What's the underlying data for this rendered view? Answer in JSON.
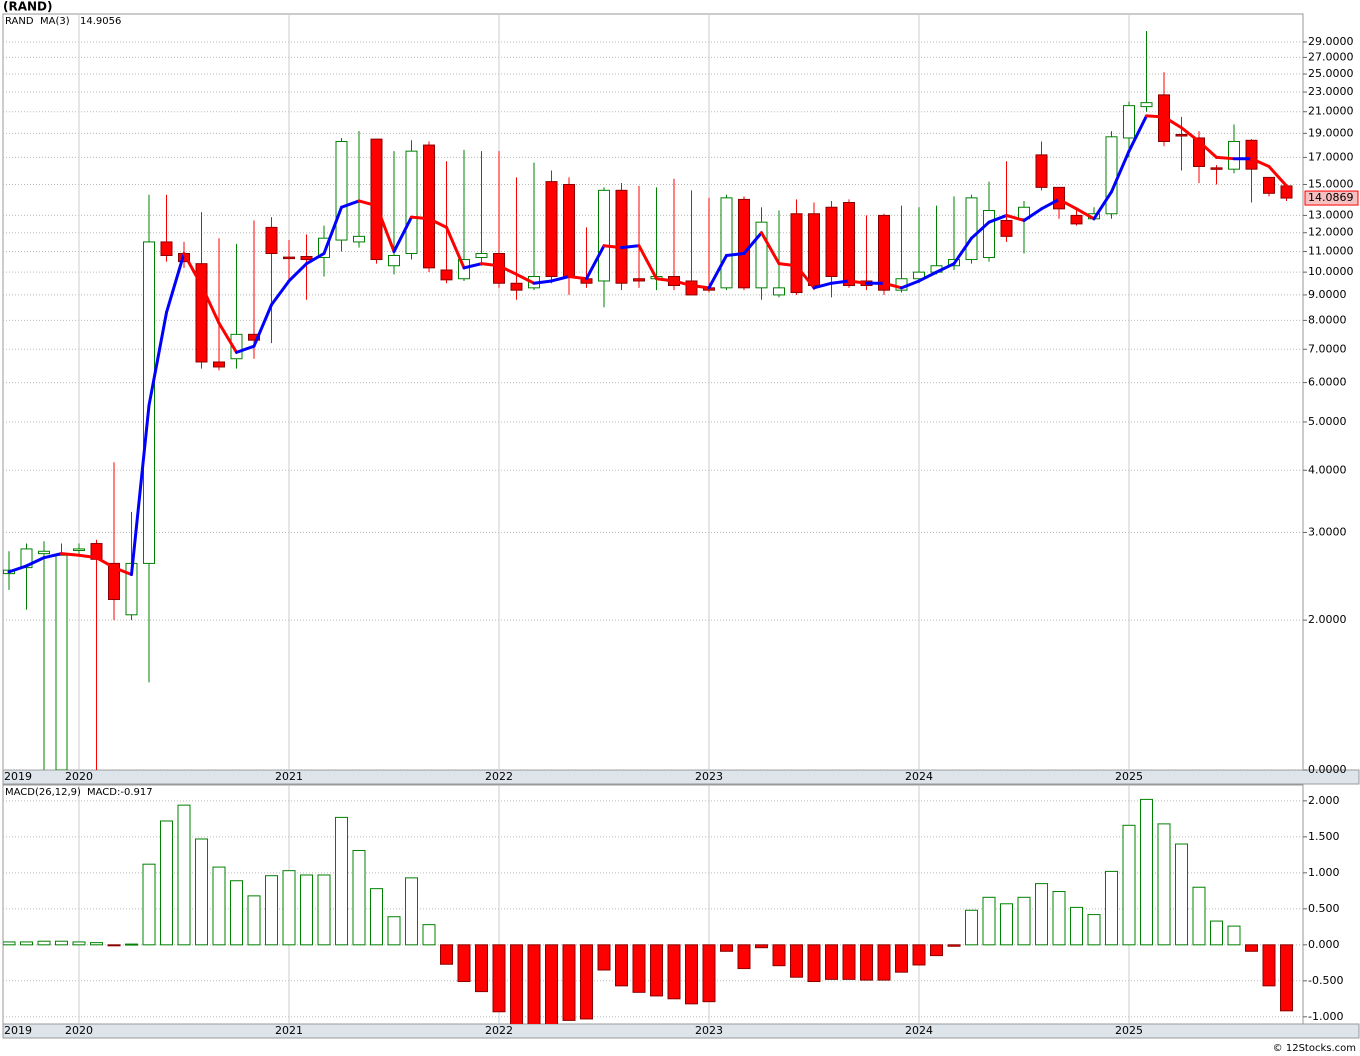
{
  "chart_data": [
    {
      "type": "candlestick",
      "title": "(RAND)",
      "name": "RAND",
      "categories": [
        "2019",
        null,
        null,
        null,
        "2020",
        null,
        null,
        null,
        null,
        null,
        null,
        null,
        null,
        null,
        null,
        null,
        "2021",
        null,
        null,
        null,
        null,
        null,
        null,
        null,
        null,
        null,
        null,
        null,
        "2022",
        null,
        null,
        null,
        null,
        null,
        null,
        null,
        null,
        null,
        null,
        null,
        "2023",
        null,
        null,
        null,
        null,
        null,
        null,
        null,
        null,
        null,
        null,
        null,
        "2024",
        null,
        null,
        null,
        null,
        null,
        null,
        null,
        null,
        null,
        null,
        null,
        "2025",
        null,
        null,
        null,
        null,
        null,
        null,
        null,
        null,
        null
      ],
      "open": [
        2.48,
        2.55,
        2.72,
        1.0,
        2.76,
        2.85,
        2.6,
        2.05,
        2.6,
        11.5,
        10.9,
        10.4,
        6.6,
        6.7,
        7.5,
        12.3,
        10.72,
        10.75,
        10.7,
        11.6,
        11.5,
        18.5,
        10.3,
        10.9,
        18.0,
        10.1,
        9.7,
        10.7,
        10.9,
        9.5,
        9.3,
        15.2,
        15.0,
        9.7,
        9.6,
        14.6,
        9.7,
        9.7,
        9.8,
        9.6,
        9.3,
        9.3,
        14.0,
        9.3,
        9.0,
        13.1,
        13.1,
        13.5,
        13.8,
        9.6,
        13.0,
        9.2,
        9.7,
        10.0,
        10.3,
        10.6,
        10.7,
        12.7,
        12.8,
        17.2,
        14.8,
        13.0,
        12.8,
        13.1,
        18.6,
        21.5,
        22.7,
        18.9,
        18.6,
        16.2,
        16.1,
        18.4,
        15.5,
        14.9
      ],
      "high": [
        2.75,
        2.85,
        2.88,
        2.85,
        2.85,
        2.9,
        4.15,
        3.3,
        14.3,
        14.3,
        11.5,
        13.2,
        11.7,
        11.4,
        12.7,
        12.9,
        11.6,
        11.9,
        12.4,
        18.6,
        19.2,
        18.5,
        17.5,
        18.4,
        18.3,
        16.7,
        17.6,
        17.5,
        17.5,
        15.5,
        16.6,
        16.0,
        15.5,
        12.3,
        14.8,
        15.1,
        14.9,
        14.8,
        15.4,
        14.6,
        14.1,
        14.3,
        14.2,
        13.5,
        13.3,
        14.0,
        13.8,
        13.9,
        14.0,
        13.0,
        13.1,
        13.6,
        13.5,
        13.6,
        14.2,
        14.3,
        15.2,
        16.7,
        13.9,
        18.3,
        14.8,
        13.3,
        13.5,
        19.2,
        22.0,
        30.5,
        25.2,
        20.5,
        19.2,
        16.4,
        19.8,
        18.5,
        15.5,
        14.9
      ],
      "low": [
        2.3,
        2.1,
        1.0,
        1.0,
        2.7,
        1.0,
        2.0,
        2.0,
        1.5,
        10.5,
        10.2,
        6.4,
        6.35,
        6.4,
        6.7,
        7.2,
        9.5,
        8.8,
        9.8,
        11.0,
        11.2,
        10.4,
        9.9,
        10.6,
        10.0,
        9.5,
        9.6,
        10.3,
        9.3,
        8.8,
        9.2,
        9.5,
        9.0,
        9.3,
        8.5,
        9.2,
        9.3,
        9.2,
        9.2,
        9.0,
        9.1,
        9.2,
        9.2,
        8.8,
        8.9,
        9.0,
        9.2,
        8.9,
        9.3,
        9.2,
        9.0,
        9.1,
        9.5,
        9.9,
        10.1,
        10.4,
        10.5,
        11.5,
        10.9,
        14.6,
        12.8,
        12.4,
        12.7,
        12.8,
        17.0,
        21.0,
        17.9,
        16.0,
        15.1,
        15.0,
        15.8,
        13.8,
        14.2,
        13.9
      ],
      "close": [
        2.52,
        2.78,
        2.75,
        2.7,
        2.78,
        2.65,
        2.2,
        2.6,
        11.5,
        10.8,
        10.5,
        6.6,
        6.45,
        7.5,
        7.3,
        10.9,
        10.68,
        10.6,
        11.7,
        18.3,
        11.8,
        10.6,
        10.8,
        17.5,
        10.2,
        9.65,
        10.6,
        10.9,
        9.5,
        9.2,
        9.8,
        9.8,
        9.8,
        9.5,
        14.6,
        9.5,
        9.6,
        9.8,
        9.4,
        9.0,
        9.2,
        14.1,
        9.3,
        12.6,
        9.3,
        9.1,
        9.4,
        9.8,
        9.4,
        9.4,
        9.2,
        9.7,
        10.0,
        10.3,
        10.6,
        14.1,
        13.3,
        11.8,
        13.5,
        14.8,
        13.4,
        12.5,
        13.1,
        18.7,
        21.6,
        21.9,
        18.3,
        18.8,
        16.3,
        16.1,
        18.3,
        16.1,
        14.4,
        14.0869
      ],
      "up_color": "#008000",
      "down_color": "#ff0000",
      "ma": {
        "name": "MA(3)",
        "up_color": "#0000ff",
        "down_color": "#ff0000",
        "values": [
          2.5,
          2.57,
          2.67,
          2.72,
          2.7,
          2.67,
          2.55,
          2.47,
          5.4,
          8.3,
          10.9,
          9.4,
          7.9,
          6.9,
          7.1,
          8.6,
          9.6,
          10.4,
          10.9,
          13.5,
          13.9,
          13.6,
          11.0,
          12.9,
          12.8,
          12.3,
          10.2,
          10.4,
          10.3,
          9.9,
          9.5,
          9.6,
          9.8,
          9.7,
          11.3,
          11.2,
          11.3,
          9.7,
          9.6,
          9.4,
          9.3,
          10.8,
          10.9,
          12.0,
          10.4,
          10.3,
          9.3,
          9.5,
          9.6,
          9.5,
          9.5,
          9.3,
          9.6,
          10.0,
          10.4,
          11.7,
          12.6,
          13.0,
          12.7,
          13.4,
          14.0,
          13.4,
          12.8,
          14.5,
          17.5,
          20.6,
          20.5,
          19.5,
          18.3,
          17.0,
          16.9,
          16.9,
          16.3,
          14.9056
        ]
      },
      "log_scale": true,
      "ylim": [
        1,
        33
      ],
      "grid": true,
      "yticks": [
        {
          "value": 0,
          "label": "0.0000"
        },
        {
          "value": 2,
          "label": "2.0000"
        },
        {
          "value": 3,
          "label": "3.0000"
        },
        {
          "value": 4,
          "label": "4.0000"
        },
        {
          "value": 5,
          "label": "5.0000"
        },
        {
          "value": 6,
          "label": "6.0000"
        },
        {
          "value": 7,
          "label": "7.0000"
        },
        {
          "value": 8,
          "label": "8.0000"
        },
        {
          "value": 9,
          "label": "9.0000"
        },
        {
          "value": 10,
          "label": "10.0000"
        },
        {
          "value": 11,
          "label": "11.0000"
        },
        {
          "value": 12,
          "label": "12.0000"
        },
        {
          "value": 13,
          "label": "13.0000"
        },
        {
          "value": 15,
          "label": "15.0000"
        },
        {
          "value": 17,
          "label": "17.0000"
        },
        {
          "value": 19,
          "label": "19.0000"
        },
        {
          "value": 21,
          "label": "21.0000"
        },
        {
          "value": 23,
          "label": "23.0000"
        },
        {
          "value": 25,
          "label": "25.0000"
        },
        {
          "value": 27,
          "label": "27.0000"
        },
        {
          "value": 29,
          "label": "29.0000"
        }
      ]
    },
    {
      "type": "bar",
      "title": "MACD(26,12,9)",
      "subtitle": "MACD:-0.917",
      "categories": [
        "2019",
        null,
        null,
        null,
        "2020",
        null,
        null,
        null,
        null,
        null,
        null,
        null,
        null,
        null,
        null,
        null,
        "2021",
        null,
        null,
        null,
        null,
        null,
        null,
        null,
        null,
        null,
        null,
        null,
        "2022",
        null,
        null,
        null,
        null,
        null,
        null,
        null,
        null,
        null,
        null,
        null,
        "2023",
        null,
        null,
        null,
        null,
        null,
        null,
        null,
        null,
        null,
        null,
        null,
        "2024",
        null,
        null,
        null,
        null,
        null,
        null,
        null,
        null,
        null,
        null,
        null,
        "2025",
        null,
        null,
        null,
        null,
        null,
        null,
        null,
        null,
        null
      ],
      "values": [
        0.04,
        0.04,
        0.05,
        0.05,
        0.04,
        0.03,
        -0.01,
        0.01,
        1.12,
        1.72,
        1.94,
        1.47,
        1.08,
        0.89,
        0.68,
        0.96,
        1.03,
        0.97,
        0.97,
        1.77,
        1.31,
        0.78,
        0.39,
        0.93,
        0.28,
        -0.27,
        -0.51,
        -0.65,
        -0.93,
        -1.12,
        -1.12,
        -1.11,
        -1.05,
        -1.03,
        -0.35,
        -0.57,
        -0.66,
        -0.71,
        -0.75,
        -0.82,
        -0.79,
        -0.09,
        -0.33,
        -0.04,
        -0.29,
        -0.45,
        -0.51,
        -0.48,
        -0.48,
        -0.49,
        -0.49,
        -0.38,
        -0.28,
        -0.15,
        -0.02,
        0.48,
        0.66,
        0.57,
        0.66,
        0.85,
        0.74,
        0.52,
        0.42,
        1.02,
        1.66,
        2.02,
        1.68,
        1.4,
        0.8,
        0.33,
        0.26,
        -0.09,
        -0.57,
        -0.917
      ],
      "pos_color": "#008000",
      "neg_color": "#ff0000",
      "ylim": [
        -1.1,
        2.22
      ],
      "grid": true,
      "yticks": [
        {
          "value": -1,
          "label": "-1.000"
        },
        {
          "value": -0.5,
          "label": "-0.500"
        },
        {
          "value": 0,
          "label": "0.000"
        },
        {
          "value": 0.5,
          "label": "0.500"
        },
        {
          "value": 1,
          "label": "1.000"
        },
        {
          "value": 1.5,
          "label": "1.500"
        },
        {
          "value": 2,
          "label": "2.000"
        }
      ]
    }
  ],
  "footer": "© 12Stocks.com"
}
